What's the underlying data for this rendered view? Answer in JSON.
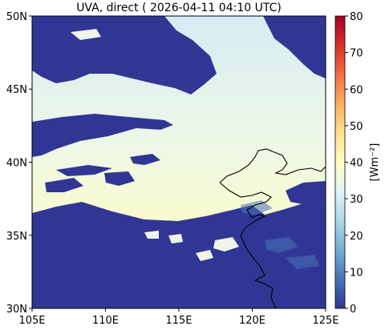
{
  "title": "UVA, direct ( 2026-04-11 04:10 UTC)",
  "colorbar": {
    "label": "[Wm⁻²]",
    "min": 0,
    "max": 80,
    "ticks": [
      "0",
      "10",
      "20",
      "30",
      "40",
      "50",
      "60",
      "70",
      "80"
    ],
    "colormap": "RdYlBu_r"
  },
  "axes": {
    "x_ticks": [
      "105E",
      "110E",
      "115E",
      "120E",
      "125E"
    ],
    "y_ticks": [
      "30N",
      "35N",
      "40N",
      "45N",
      "50N"
    ],
    "lon_range": [
      105,
      125
    ],
    "lat_range": [
      30,
      50
    ]
  },
  "map_data": {
    "field": "UVA direct irradiance",
    "clear_sky_value_range": [
      28,
      40
    ],
    "cloud_value": 0,
    "coastline": true
  },
  "colors": {
    "cloud": "#313695",
    "low_clear": "#dbeef4",
    "high_clear": "#fbfcc9",
    "coastline": "#000000"
  }
}
